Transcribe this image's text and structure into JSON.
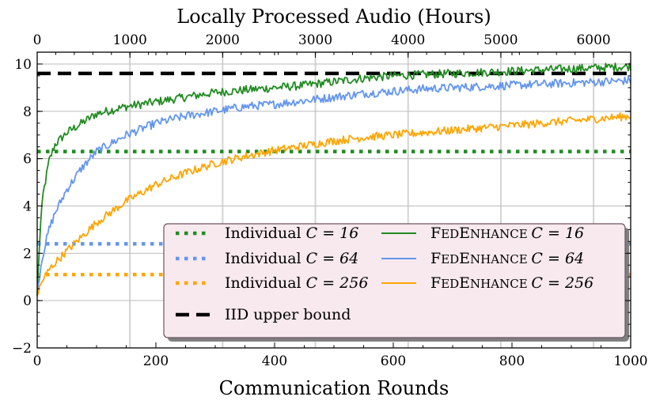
{
  "chart_data": {
    "type": "line",
    "title": "Locally Processed Audio (Hours)",
    "xlabel": "Communication Rounds",
    "ylabel": "",
    "xlim": [
      0,
      1000
    ],
    "ylim": [
      -2,
      10.5
    ],
    "xticks": [
      0,
      200,
      400,
      600,
      800,
      1000
    ],
    "xtick_labels": [
      "0",
      "200",
      "400",
      "600",
      "800",
      "1000"
    ],
    "yticks": [
      -2,
      0,
      2,
      4,
      6,
      8,
      10
    ],
    "ytick_labels": [
      "−2",
      "0",
      "2",
      "4",
      "6",
      "8",
      "10"
    ],
    "top_axis": {
      "label": "Locally Processed Audio (Hours)",
      "xlim": [
        0,
        6400
      ],
      "ticks": [
        0,
        1000,
        2000,
        3000,
        4000,
        5000,
        6000
      ],
      "tick_labels": [
        "0",
        "1000",
        "2000",
        "3000",
        "4000",
        "5000",
        "6000"
      ]
    },
    "grid": true,
    "legend_position": "lower-right",
    "series": [
      {
        "name": "Individual C = 16",
        "legend_main": "Individual ",
        "legend_var": "C = 16",
        "style": "dotted",
        "color": "#228B22",
        "x": [
          0,
          1000
        ],
        "y": [
          6.3,
          6.3
        ]
      },
      {
        "name": "Individual C = 64",
        "legend_main": "Individual ",
        "legend_var": "C = 64",
        "style": "dotted",
        "color": "#6495ED",
        "x": [
          0,
          1000
        ],
        "y": [
          2.4,
          2.4
        ]
      },
      {
        "name": "Individual C = 256",
        "legend_main": "Individual ",
        "legend_var": "C = 256",
        "style": "dotted",
        "color": "#FFA500",
        "x": [
          0,
          1000
        ],
        "y": [
          1.1,
          1.1
        ]
      },
      {
        "name": "IID upper bound",
        "legend_main": "IID upper bound",
        "legend_var": "",
        "style": "dashed",
        "color": "#000000",
        "x": [
          0,
          1000
        ],
        "y": [
          9.6,
          9.6
        ]
      },
      {
        "name": "FedEnhance C = 16",
        "legend_main": "FedEnhance ",
        "legend_var": "C = 16",
        "style": "solid",
        "color": "#228B22",
        "x": [
          0,
          5,
          10,
          20,
          30,
          50,
          75,
          100,
          150,
          200,
          250,
          300,
          350,
          400,
          450,
          500,
          550,
          600,
          650,
          700,
          750,
          800,
          850,
          900,
          950,
          1000
        ],
        "y": [
          0.2,
          3.0,
          4.5,
          5.9,
          6.6,
          7.1,
          7.5,
          7.9,
          8.2,
          8.4,
          8.6,
          8.8,
          8.9,
          9.0,
          9.1,
          9.25,
          9.4,
          9.5,
          9.55,
          9.6,
          9.65,
          9.7,
          9.75,
          9.8,
          9.85,
          9.9
        ]
      },
      {
        "name": "FedEnhance C = 64",
        "legend_main": "FedEnhance ",
        "legend_var": "C = 64",
        "style": "solid",
        "color": "#6495ED",
        "x": [
          0,
          5,
          10,
          20,
          30,
          50,
          75,
          100,
          150,
          200,
          250,
          300,
          350,
          400,
          450,
          500,
          550,
          600,
          650,
          700,
          750,
          800,
          850,
          900,
          950,
          1000
        ],
        "y": [
          0.2,
          1.3,
          2.0,
          3.0,
          3.7,
          4.7,
          5.6,
          6.3,
          7.0,
          7.5,
          7.8,
          8.0,
          8.2,
          8.3,
          8.45,
          8.6,
          8.75,
          8.85,
          8.95,
          9.0,
          9.05,
          9.1,
          9.15,
          9.2,
          9.25,
          9.3
        ]
      },
      {
        "name": "FedEnhance C = 256",
        "legend_main": "FedEnhance ",
        "legend_var": "C = 256",
        "style": "solid",
        "color": "#FFA500",
        "x": [
          0,
          5,
          10,
          20,
          30,
          50,
          75,
          100,
          150,
          200,
          250,
          300,
          350,
          400,
          450,
          500,
          550,
          600,
          650,
          700,
          750,
          800,
          850,
          900,
          950,
          1000
        ],
        "y": [
          0.2,
          0.6,
          0.9,
          1.3,
          1.6,
          2.1,
          2.7,
          3.3,
          4.2,
          4.9,
          5.4,
          5.8,
          6.1,
          6.35,
          6.55,
          6.75,
          6.9,
          7.0,
          7.1,
          7.2,
          7.3,
          7.4,
          7.5,
          7.6,
          7.7,
          7.8
        ]
      }
    ]
  }
}
